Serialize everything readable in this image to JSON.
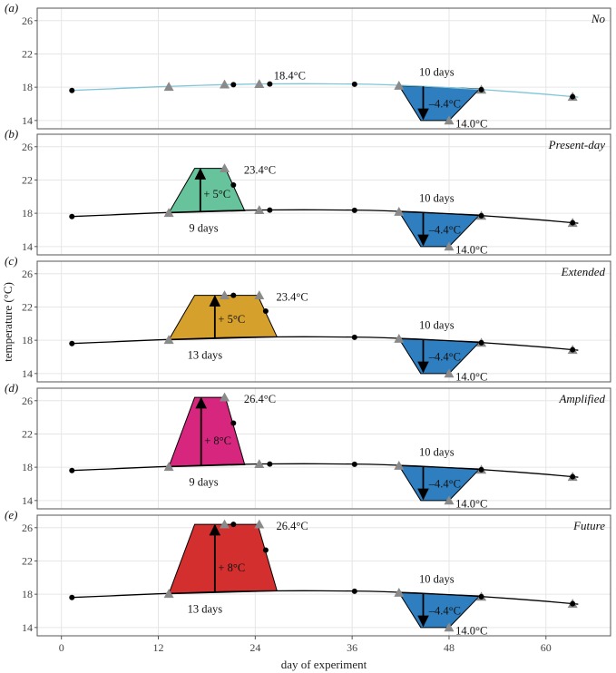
{
  "chart_data": {
    "type": "line",
    "xlabel": "day of experiment",
    "ylabel": "temperature (°C)",
    "xlim": [
      -3,
      68
    ],
    "ylim": [
      13,
      27.5
    ],
    "xticks": [
      0,
      12,
      24,
      36,
      48,
      60
    ],
    "yticks": [
      14,
      18,
      22,
      26
    ],
    "grid": true,
    "panels": [
      {
        "letter": "(a)",
        "title": "No",
        "baseline_color": "#7fc5d8",
        "baseline": [
          [
            1,
            17.6
          ],
          [
            6,
            17.8
          ],
          [
            12,
            18.05
          ],
          [
            18,
            18.25
          ],
          [
            24,
            18.38
          ],
          [
            30,
            18.42
          ],
          [
            36,
            18.38
          ],
          [
            40,
            18.3
          ],
          [
            44,
            18.15
          ],
          [
            48,
            17.95
          ],
          [
            52,
            17.72
          ],
          [
            56,
            17.45
          ],
          [
            60,
            17.15
          ],
          [
            64,
            16.8
          ]
        ],
        "heatwave": null,
        "coldspell": {
          "color": "#2f7fc0",
          "points": [
            [
              41.8,
              18.18
            ],
            [
              44.5,
              14.0
            ],
            [
              48.0,
              14.0
            ],
            [
              51.8,
              17.8
            ]
          ],
          "arrow_x": 44.8,
          "arrow_from": 18.1,
          "arrow_to": 14.2
        },
        "annotations": [
          {
            "text": "18.4°C",
            "x": 26.3,
            "y": 19.4
          },
          {
            "text": "10 days",
            "x": 44.3,
            "y": 19.8
          },
          {
            "text": "–4.4°C",
            "x": 45.5,
            "y": 16.0
          },
          {
            "text": "14.0°C",
            "x": 48.8,
            "y": 13.6
          }
        ],
        "triangles": [
          [
            13.3,
            18.05
          ],
          [
            20.2,
            18.33
          ],
          [
            24.5,
            18.38
          ],
          [
            41.8,
            18.18
          ],
          [
            48.0,
            14.0
          ],
          [
            52.0,
            17.7
          ],
          [
            63.3,
            16.85
          ]
        ],
        "circles": [
          [
            1.3,
            17.6
          ],
          [
            21.3,
            18.3
          ],
          [
            25.8,
            18.38
          ],
          [
            36.3,
            18.35
          ],
          [
            52.0,
            17.7
          ],
          [
            63.3,
            16.85
          ]
        ]
      },
      {
        "letter": "(b)",
        "title": "Present-day",
        "baseline_color": "#000000",
        "baseline": [
          [
            1,
            17.6
          ],
          [
            6,
            17.8
          ],
          [
            12,
            18.05
          ],
          [
            18,
            18.25
          ],
          [
            24,
            18.38
          ],
          [
            30,
            18.42
          ],
          [
            36,
            18.38
          ],
          [
            40,
            18.3
          ],
          [
            44,
            18.15
          ],
          [
            48,
            17.95
          ],
          [
            52,
            17.72
          ],
          [
            56,
            17.45
          ],
          [
            60,
            17.15
          ],
          [
            64,
            16.8
          ]
        ],
        "heatwave": {
          "color": "#66c39b",
          "points": [
            [
              13.3,
              18.05
            ],
            [
              16.5,
              23.4
            ],
            [
              20.3,
              23.4
            ],
            [
              22.7,
              18.3
            ]
          ],
          "arrow_x": 17.2,
          "arrow_from": 18.2,
          "arrow_to": 23.3
        },
        "coldspell": {
          "color": "#2f7fc0",
          "points": [
            [
              41.8,
              18.18
            ],
            [
              44.5,
              14.0
            ],
            [
              48.0,
              14.0
            ],
            [
              51.8,
              17.8
            ]
          ],
          "arrow_x": 44.8,
          "arrow_from": 18.1,
          "arrow_to": 14.2
        },
        "annotations": [
          {
            "text": "23.4°C",
            "x": 22.6,
            "y": 23.2
          },
          {
            "text": "+ 5°C",
            "x": 17.6,
            "y": 20.3
          },
          {
            "text": "9 days",
            "x": 15.8,
            "y": 16.2
          },
          {
            "text": "10 days",
            "x": 44.3,
            "y": 19.8
          },
          {
            "text": "–4.4°C",
            "x": 45.5,
            "y": 16.0
          },
          {
            "text": "14.0°C",
            "x": 48.8,
            "y": 13.6
          }
        ],
        "triangles": [
          [
            13.3,
            18.05
          ],
          [
            20.2,
            23.4
          ],
          [
            24.5,
            18.38
          ],
          [
            41.8,
            18.18
          ],
          [
            48.0,
            14.0
          ],
          [
            52.0,
            17.7
          ],
          [
            63.3,
            16.85
          ]
        ],
        "circles": [
          [
            1.3,
            17.6
          ],
          [
            21.3,
            21.4
          ],
          [
            25.8,
            18.38
          ],
          [
            36.3,
            18.35
          ],
          [
            52.0,
            17.7
          ],
          [
            63.3,
            16.85
          ]
        ]
      },
      {
        "letter": "(c)",
        "title": "Extended",
        "baseline_color": "#000000",
        "baseline": [
          [
            1,
            17.6
          ],
          [
            6,
            17.8
          ],
          [
            12,
            18.05
          ],
          [
            18,
            18.25
          ],
          [
            24,
            18.38
          ],
          [
            30,
            18.42
          ],
          [
            36,
            18.38
          ],
          [
            40,
            18.3
          ],
          [
            44,
            18.15
          ],
          [
            48,
            17.95
          ],
          [
            52,
            17.72
          ],
          [
            56,
            17.45
          ],
          [
            60,
            17.15
          ],
          [
            64,
            16.8
          ]
        ],
        "heatwave": {
          "color": "#d5a02c",
          "points": [
            [
              13.3,
              18.05
            ],
            [
              16.5,
              23.4
            ],
            [
              24.3,
              23.4
            ],
            [
              26.7,
              18.4
            ]
          ],
          "arrow_x": 19.0,
          "arrow_from": 18.3,
          "arrow_to": 23.3
        },
        "coldspell": {
          "color": "#2f7fc0",
          "points": [
            [
              41.8,
              18.18
            ],
            [
              44.5,
              14.0
            ],
            [
              48.0,
              14.0
            ],
            [
              51.8,
              17.8
            ]
          ],
          "arrow_x": 44.8,
          "arrow_from": 18.1,
          "arrow_to": 14.2
        },
        "annotations": [
          {
            "text": "23.4°C",
            "x": 26.6,
            "y": 23.2
          },
          {
            "text": "+ 5°C",
            "x": 19.4,
            "y": 20.5
          },
          {
            "text": "13 days",
            "x": 15.6,
            "y": 16.2
          },
          {
            "text": "10 days",
            "x": 44.3,
            "y": 19.8
          },
          {
            "text": "–4.4°C",
            "x": 45.5,
            "y": 16.0
          },
          {
            "text": "14.0°C",
            "x": 48.8,
            "y": 13.6
          }
        ],
        "triangles": [
          [
            13.3,
            18.05
          ],
          [
            20.2,
            23.4
          ],
          [
            24.5,
            23.4
          ],
          [
            41.8,
            18.18
          ],
          [
            48.0,
            14.0
          ],
          [
            52.0,
            17.7
          ],
          [
            63.3,
            16.85
          ]
        ],
        "circles": [
          [
            1.3,
            17.6
          ],
          [
            21.3,
            23.4
          ],
          [
            25.3,
            21.5
          ],
          [
            36.3,
            18.35
          ],
          [
            52.0,
            17.7
          ],
          [
            63.3,
            16.85
          ]
        ]
      },
      {
        "letter": "(d)",
        "title": "Amplified",
        "baseline_color": "#000000",
        "baseline": [
          [
            1,
            17.6
          ],
          [
            6,
            17.8
          ],
          [
            12,
            18.05
          ],
          [
            18,
            18.25
          ],
          [
            24,
            18.38
          ],
          [
            30,
            18.42
          ],
          [
            36,
            18.38
          ],
          [
            40,
            18.3
          ],
          [
            44,
            18.15
          ],
          [
            48,
            17.95
          ],
          [
            52,
            17.72
          ],
          [
            56,
            17.45
          ],
          [
            60,
            17.15
          ],
          [
            64,
            16.8
          ]
        ],
        "heatwave": {
          "color": "#d6267e",
          "points": [
            [
              13.3,
              18.05
            ],
            [
              16.5,
              26.4
            ],
            [
              20.3,
              26.4
            ],
            [
              22.7,
              18.3
            ]
          ],
          "arrow_x": 17.3,
          "arrow_from": 18.2,
          "arrow_to": 26.3
        },
        "coldspell": {
          "color": "#2f7fc0",
          "points": [
            [
              41.8,
              18.18
            ],
            [
              44.5,
              14.0
            ],
            [
              48.0,
              14.0
            ],
            [
              51.8,
              17.8
            ]
          ],
          "arrow_x": 44.8,
          "arrow_from": 18.1,
          "arrow_to": 14.2
        },
        "annotations": [
          {
            "text": "26.4°C",
            "x": 22.6,
            "y": 26.2
          },
          {
            "text": "+ 8°C",
            "x": 17.7,
            "y": 21.2
          },
          {
            "text": "9 days",
            "x": 15.8,
            "y": 16.2
          },
          {
            "text": "10 days",
            "x": 44.3,
            "y": 19.8
          },
          {
            "text": "–4.4°C",
            "x": 45.5,
            "y": 16.0
          },
          {
            "text": "14.0°C",
            "x": 48.8,
            "y": 13.6
          }
        ],
        "triangles": [
          [
            13.3,
            18.05
          ],
          [
            20.2,
            26.4
          ],
          [
            24.5,
            18.38
          ],
          [
            41.8,
            18.18
          ],
          [
            48.0,
            14.0
          ],
          [
            52.0,
            17.7
          ],
          [
            63.3,
            16.85
          ]
        ],
        "circles": [
          [
            1.3,
            17.6
          ],
          [
            21.3,
            23.3
          ],
          [
            25.8,
            18.38
          ],
          [
            36.3,
            18.35
          ],
          [
            52.0,
            17.7
          ],
          [
            63.3,
            16.85
          ]
        ]
      },
      {
        "letter": "(e)",
        "title": "Future",
        "baseline_color": "#000000",
        "baseline": [
          [
            1,
            17.6
          ],
          [
            6,
            17.8
          ],
          [
            12,
            18.05
          ],
          [
            18,
            18.25
          ],
          [
            24,
            18.38
          ],
          [
            30,
            18.42
          ],
          [
            36,
            18.38
          ],
          [
            40,
            18.3
          ],
          [
            44,
            18.15
          ],
          [
            48,
            17.95
          ],
          [
            52,
            17.72
          ],
          [
            56,
            17.45
          ],
          [
            60,
            17.15
          ],
          [
            64,
            16.8
          ]
        ],
        "heatwave": {
          "color": "#d32f2f",
          "points": [
            [
              13.3,
              18.05
            ],
            [
              16.5,
              26.4
            ],
            [
              24.3,
              26.4
            ],
            [
              26.7,
              18.4
            ]
          ],
          "arrow_x": 19.0,
          "arrow_from": 18.3,
          "arrow_to": 26.3
        },
        "coldspell": {
          "color": "#2f7fc0",
          "points": [
            [
              41.8,
              18.18
            ],
            [
              44.5,
              14.0
            ],
            [
              48.0,
              14.0
            ],
            [
              51.8,
              17.8
            ]
          ],
          "arrow_x": 44.8,
          "arrow_from": 18.1,
          "arrow_to": 14.2
        },
        "annotations": [
          {
            "text": "26.4°C",
            "x": 26.6,
            "y": 26.2
          },
          {
            "text": "+ 8°C",
            "x": 19.4,
            "y": 21.2
          },
          {
            "text": "13 days",
            "x": 15.6,
            "y": 16.2
          },
          {
            "text": "10 days",
            "x": 44.3,
            "y": 19.8
          },
          {
            "text": "–4.4°C",
            "x": 45.5,
            "y": 16.0
          },
          {
            "text": "14.0°C",
            "x": 48.8,
            "y": 13.6
          }
        ],
        "triangles": [
          [
            13.3,
            18.05
          ],
          [
            20.2,
            26.4
          ],
          [
            24.5,
            26.4
          ],
          [
            41.8,
            18.18
          ],
          [
            48.0,
            14.0
          ],
          [
            52.0,
            17.7
          ],
          [
            63.3,
            16.85
          ]
        ],
        "circles": [
          [
            1.3,
            17.6
          ],
          [
            21.3,
            26.4
          ],
          [
            25.3,
            23.3
          ],
          [
            36.3,
            18.35
          ],
          [
            52.0,
            17.7
          ],
          [
            63.3,
            16.85
          ]
        ]
      }
    ]
  }
}
